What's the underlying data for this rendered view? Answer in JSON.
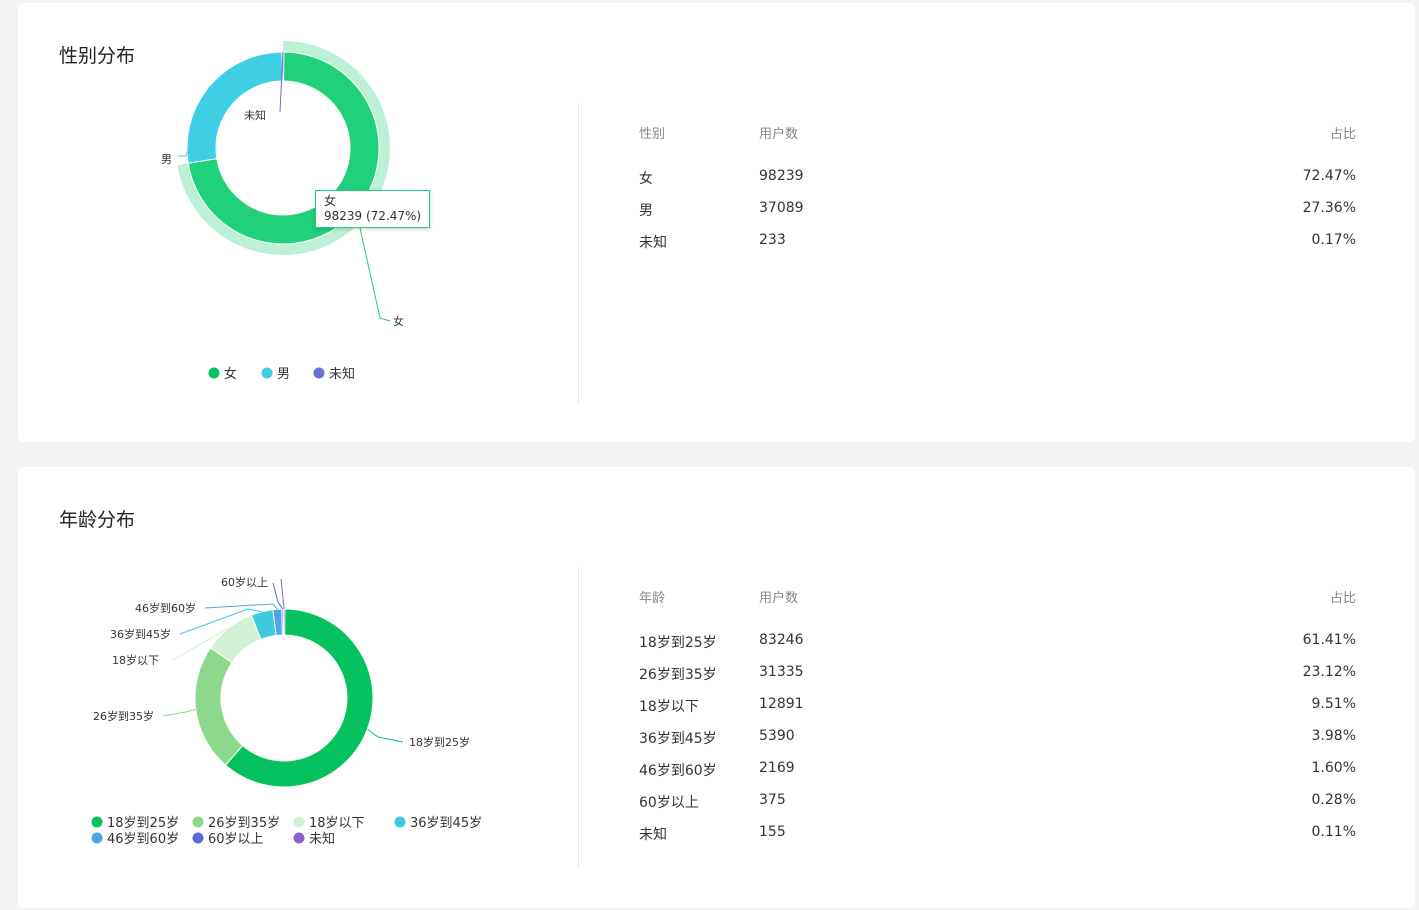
{
  "gender": {
    "title": "性别分布",
    "table": {
      "headers": [
        "性别",
        "用户数",
        "占比"
      ],
      "rows": [
        {
          "label": "女",
          "count": "98239",
          "pct": "72.47%"
        },
        {
          "label": "男",
          "count": "37089",
          "pct": "27.36%"
        },
        {
          "label": "未知",
          "count": "233",
          "pct": "0.17%"
        }
      ]
    },
    "tooltip": {
      "name": "女",
      "value": "98239 (72.47%)"
    }
  },
  "age": {
    "title": "年龄分布",
    "table": {
      "headers": [
        "年龄",
        "用户数",
        "占比"
      ],
      "rows": [
        {
          "label": "18岁到25岁",
          "count": "83246",
          "pct": "61.41%"
        },
        {
          "label": "26岁到35岁",
          "count": "31335",
          "pct": "23.12%"
        },
        {
          "label": "18岁以下",
          "count": "12891",
          "pct": "9.51%"
        },
        {
          "label": "36岁到45岁",
          "count": "5390",
          "pct": "3.98%"
        },
        {
          "label": "46岁到60岁",
          "count": "2169",
          "pct": "1.60%"
        },
        {
          "label": "60岁以上",
          "count": "375",
          "pct": "0.28%"
        },
        {
          "label": "未知",
          "count": "155",
          "pct": "0.11%"
        }
      ]
    }
  },
  "chart_data": [
    {
      "type": "pie",
      "title": "性别分布",
      "categories": [
        "女",
        "男",
        "未知"
      ],
      "values": [
        98239,
        37089,
        233
      ],
      "colors": [
        "#21d07a",
        "#3fcfe4",
        "#6a6fd6"
      ],
      "legend_colors": [
        "#06c160",
        "#3fcfe4",
        "#6a6fd6"
      ],
      "highlighted": "女",
      "legend_position": "bottom"
    },
    {
      "type": "pie",
      "title": "年龄分布",
      "categories": [
        "18岁到25岁",
        "26岁到35岁",
        "18岁以下",
        "36岁到45岁",
        "46岁到60岁",
        "60岁以上",
        "未知"
      ],
      "values": [
        83246,
        31335,
        12891,
        5390,
        2169,
        375,
        155
      ],
      "colors": [
        "#06c160",
        "#8dd88c",
        "#d2f0d3",
        "#3fc9de",
        "#4fa3e8",
        "#5b6bd6",
        "#8b5fd0"
      ],
      "legend_position": "bottom"
    }
  ]
}
